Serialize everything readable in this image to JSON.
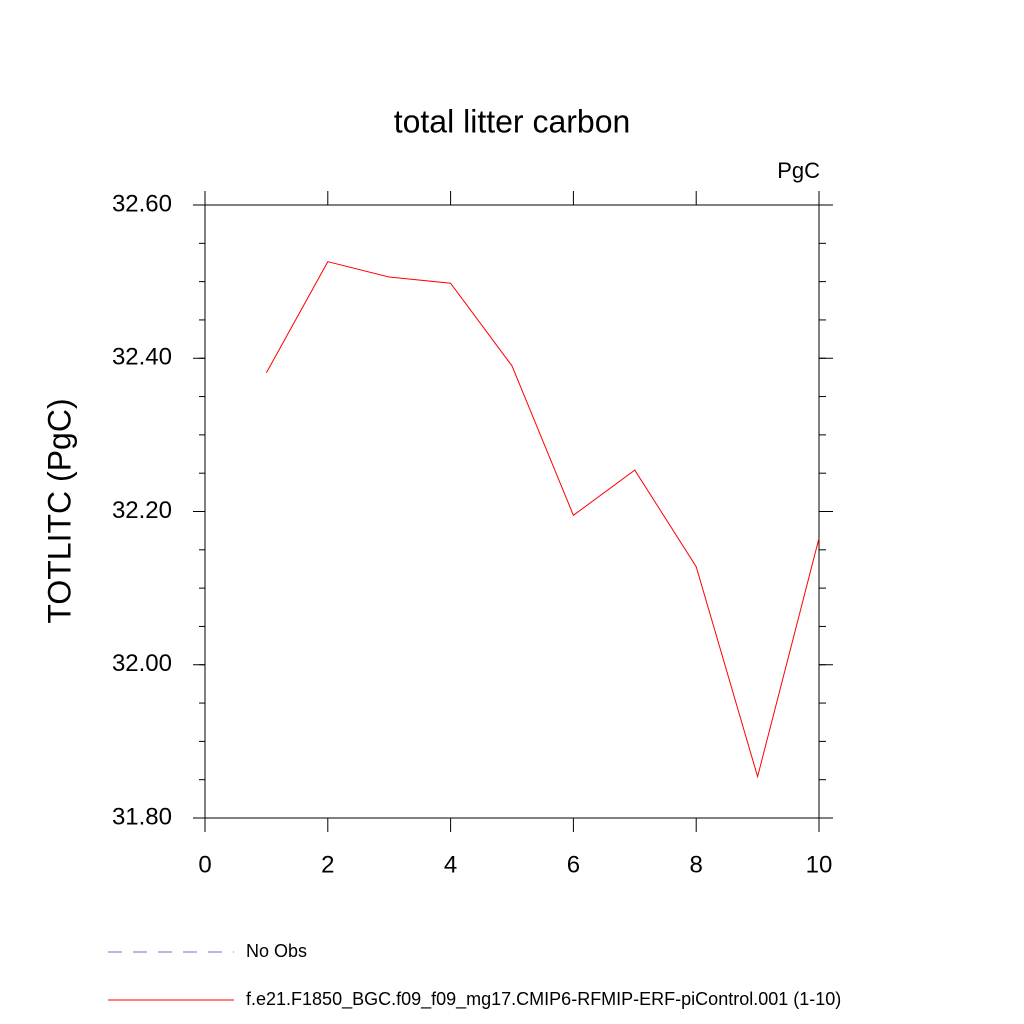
{
  "chart_data": {
    "type": "line",
    "title": "total litter carbon",
    "units": "PgC",
    "ylabel": "TOTLITC  (PgC)",
    "x": [
      1,
      2,
      3,
      4,
      5,
      6,
      7,
      8,
      9,
      10
    ],
    "series": [
      {
        "name": "f.e21.F1850_BGC.f09_f09_mg17.CMIP6-RFMIP-ERF-piControl.001 (1-10)",
        "color": "#ff0000",
        "values": [
          32.381,
          32.526,
          32.506,
          32.498,
          32.39,
          32.195,
          32.254,
          32.128,
          31.854,
          32.165
        ]
      }
    ],
    "extra_legend": [
      {
        "name": "No Obs",
        "color": "#7a6fc0",
        "dashed": true
      }
    ],
    "xlim": [
      0,
      10
    ],
    "xticks": [
      0,
      2,
      4,
      6,
      8,
      10
    ],
    "ylim": [
      31.8,
      32.6
    ],
    "yticks": [
      {
        "value": 31.8,
        "label": "31.80"
      },
      {
        "value": 32.0,
        "label": "32.00"
      },
      {
        "value": 32.2,
        "label": "32.20"
      },
      {
        "value": 32.4,
        "label": "32.40"
      },
      {
        "value": 32.6,
        "label": "32.60"
      }
    ],
    "yminor_step": 0.05
  }
}
